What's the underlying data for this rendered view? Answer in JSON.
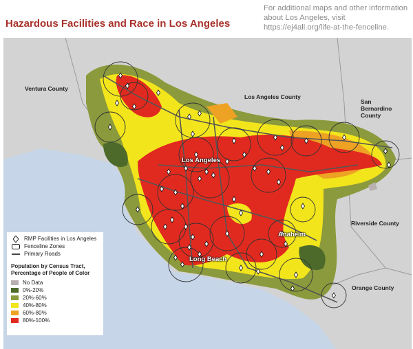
{
  "header": {
    "title": "Hazardous Facilities and Race in Los Angeles",
    "note": "For additional maps and other information about Los Angeles, visit https://ej4all.org/life-at-the-fenceline."
  },
  "map": {
    "labels": [
      "Ventura County",
      "Los Angeles County",
      "San Bernardino County",
      "Los Angeles",
      "Riverside County",
      "Anaheim",
      "Long Beach",
      "Orange County"
    ]
  },
  "legend": {
    "symbols": [
      "RMP Facilities in Los Angeles",
      "Fenceline Zones",
      "Primary Roads"
    ],
    "heading": "Population by Census Tract, Percentage of People of Color",
    "classes": [
      {
        "label": "No Data",
        "color": "#b8afaf"
      },
      {
        "label": "0%-20%",
        "color": "#4d6a2b"
      },
      {
        "label": "20%-60%",
        "color": "#8b9a3c"
      },
      {
        "label": "40%-80%",
        "color": "#f2e51c"
      },
      {
        "label": "60%-80%",
        "color": "#eea223"
      },
      {
        "label": "80%-100%",
        "color": "#e12a1f"
      }
    ]
  }
}
